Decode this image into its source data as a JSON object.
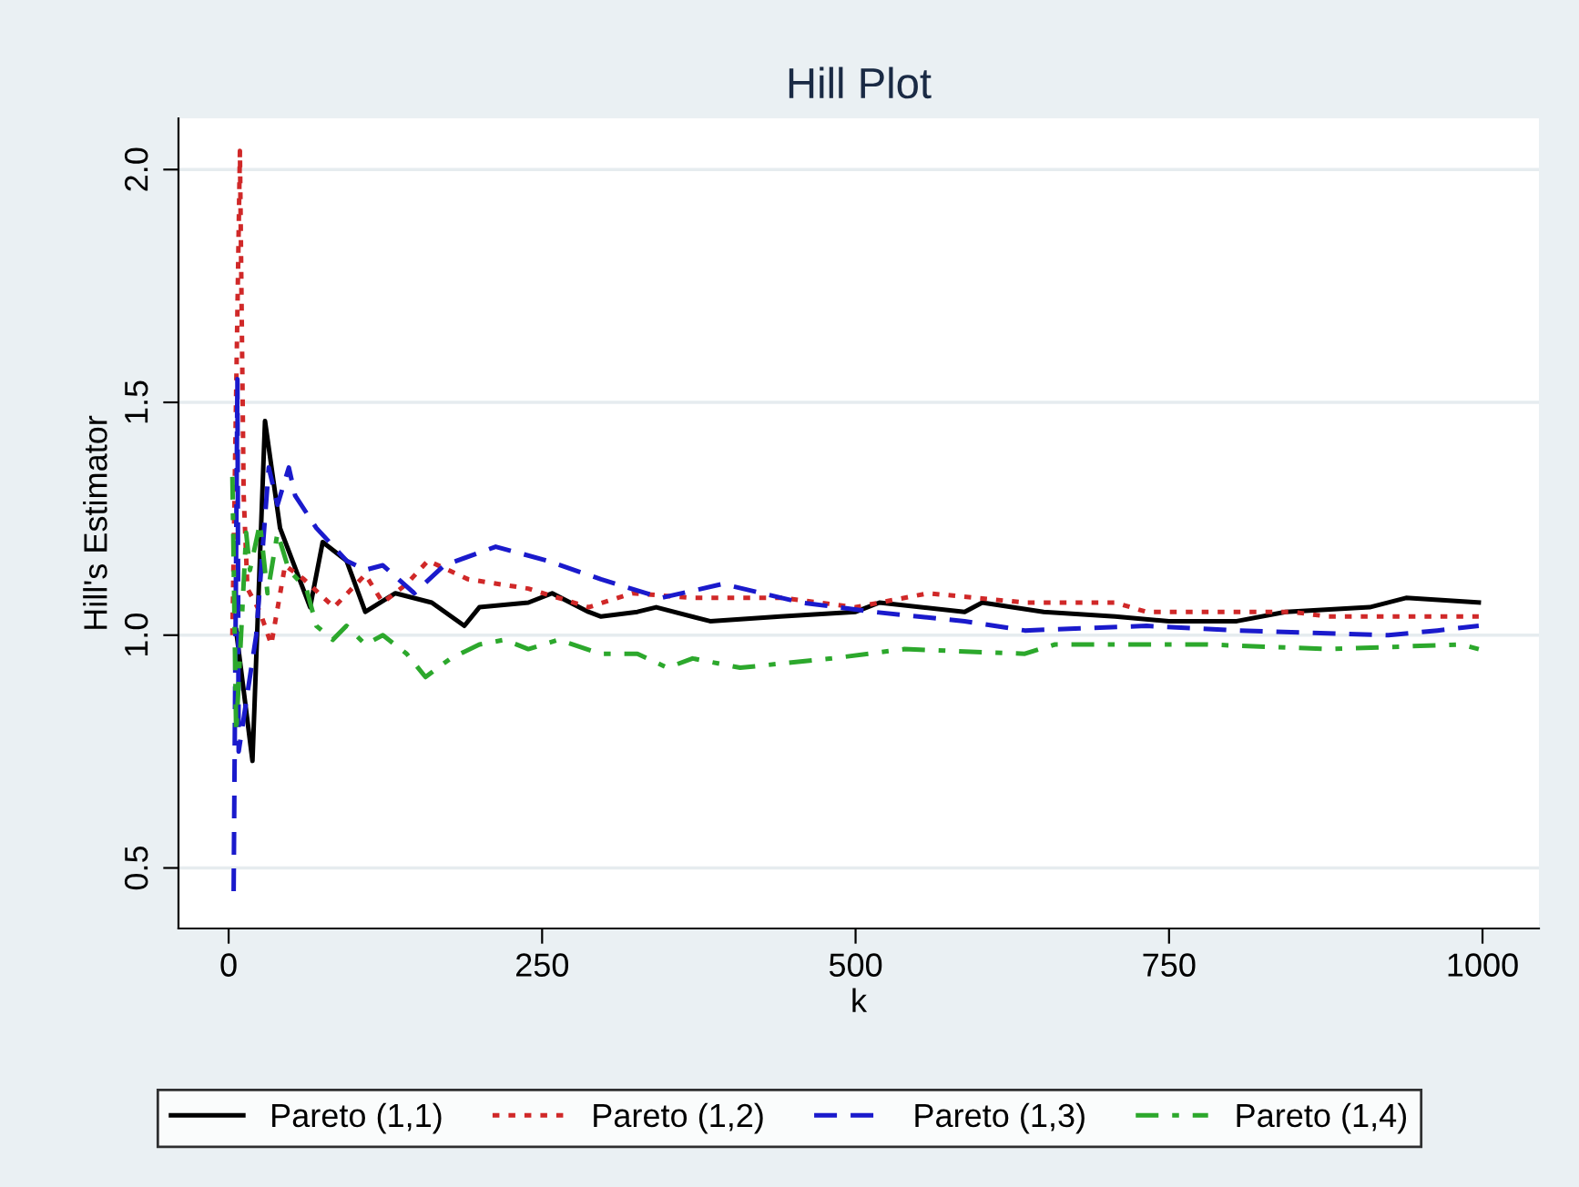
{
  "chart_data": {
    "type": "line",
    "title": "Hill Plot",
    "xlabel": "k",
    "ylabel": "Hill's Estimator",
    "xlim": [
      -40,
      1045
    ],
    "ylim": [
      0.37,
      2.11
    ],
    "xticks": [
      0,
      250,
      500,
      750,
      1000
    ],
    "yticks": [
      {
        "value": 0.5,
        "label": "0.5"
      },
      {
        "value": 1.0,
        "label": "1.0"
      },
      {
        "value": 1.5,
        "label": "1.5"
      },
      {
        "value": 2.0,
        "label": "2.0"
      }
    ],
    "grid": "y",
    "legend": "bottom",
    "marker": "none",
    "series": [
      {
        "name": "Pareto (1,1)",
        "color": "#000000",
        "line_style": "solid",
        "x": [
          6,
          19,
          29,
          41,
          65,
          75,
          94,
          109,
          133,
          162,
          188,
          200,
          239,
          258,
          287,
          297,
          326,
          341,
          384,
          440,
          500,
          519,
          587,
          601,
          650,
          707,
          750,
          804,
          843,
          910,
          939,
          997
        ],
        "values": [
          1.01,
          0.73,
          1.46,
          1.23,
          1.06,
          1.2,
          1.16,
          1.05,
          1.09,
          1.07,
          1.02,
          1.06,
          1.07,
          1.09,
          1.05,
          1.04,
          1.05,
          1.06,
          1.03,
          1.04,
          1.05,
          1.07,
          1.05,
          1.07,
          1.05,
          1.04,
          1.03,
          1.03,
          1.05,
          1.06,
          1.08,
          1.07
        ]
      },
      {
        "name": "Pareto (1,2)",
        "color": "#d02828",
        "line_style": "dotted",
        "x": [
          3,
          9,
          12,
          15,
          25,
          34,
          45,
          60,
          84,
          109,
          123,
          142,
          159,
          191,
          239,
          287,
          322,
          370,
          442,
          500,
          558,
          635,
          707,
          732,
          829,
          848,
          877,
          997
        ],
        "values": [
          1.0,
          2.04,
          1.3,
          1.1,
          1.05,
          0.98,
          1.15,
          1.12,
          1.06,
          1.13,
          1.07,
          1.11,
          1.16,
          1.12,
          1.1,
          1.06,
          1.09,
          1.08,
          1.08,
          1.06,
          1.09,
          1.07,
          1.07,
          1.05,
          1.05,
          1.05,
          1.04,
          1.04
        ]
      },
      {
        "name": "Pareto (1,3)",
        "color": "#1a1acc",
        "line_style": "dashed",
        "x": [
          4,
          7,
          8,
          22,
          32,
          39,
          48,
          53,
          70,
          94,
          109,
          123,
          148,
          172,
          213,
          254,
          297,
          345,
          394,
          457,
          514,
          587,
          635,
          732,
          804,
          925,
          964,
          997
        ],
        "values": [
          0.45,
          1.55,
          0.75,
          1.0,
          1.36,
          1.28,
          1.36,
          1.3,
          1.23,
          1.16,
          1.14,
          1.15,
          1.09,
          1.15,
          1.19,
          1.16,
          1.12,
          1.08,
          1.11,
          1.07,
          1.05,
          1.03,
          1.01,
          1.02,
          1.01,
          1.0,
          1.01,
          1.02
        ]
      },
      {
        "name": "Pareto (1,4)",
        "color": "#2ca82c",
        "line_style": "dashdot",
        "x": [
          3,
          6,
          14,
          17,
          25,
          31,
          39,
          48,
          62,
          70,
          83,
          94,
          109,
          123,
          142,
          157,
          177,
          200,
          220,
          239,
          263,
          297,
          326,
          350,
          370,
          408,
          481,
          539,
          635,
          659,
          780,
          877,
          983,
          997
        ],
        "values": [
          1.34,
          0.79,
          1.22,
          1.14,
          1.24,
          1.09,
          1.22,
          1.14,
          1.1,
          1.02,
          0.99,
          1.02,
          0.98,
          1.0,
          0.96,
          0.91,
          0.95,
          0.98,
          0.99,
          0.97,
          0.99,
          0.96,
          0.96,
          0.93,
          0.95,
          0.93,
          0.95,
          0.97,
          0.96,
          0.98,
          0.98,
          0.97,
          0.98,
          0.97
        ]
      }
    ]
  }
}
